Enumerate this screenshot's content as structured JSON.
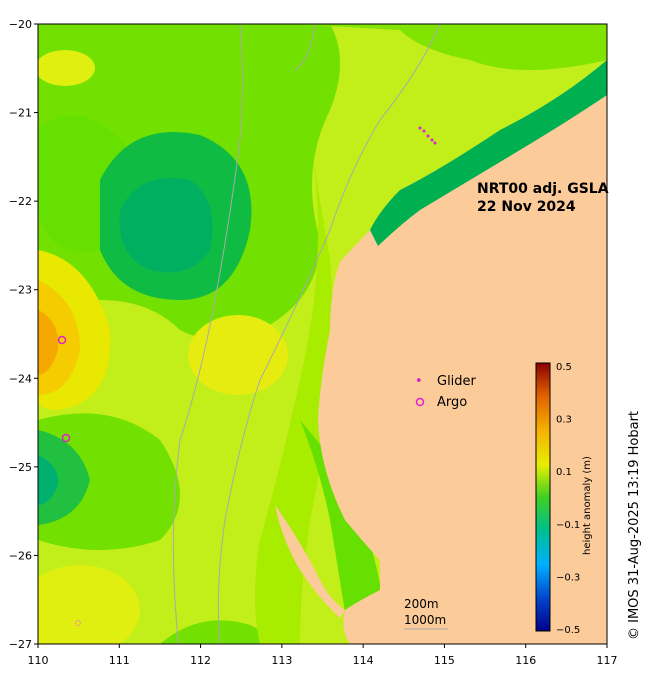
{
  "title": {
    "line1": "NRT00 adj. GSLA",
    "line2": "22 Nov 2024"
  },
  "credit": "© IMOS 31-Aug-2025 13:19 Hobart",
  "legend": {
    "glider_label": "Glider",
    "argo_label": "Argo",
    "glider_symbol": "•",
    "argo_symbol": "o",
    "glider_color": "#e020d0",
    "argo_color": "#e020d0"
  },
  "colorbar": {
    "title": "height anomaly (m)",
    "ticks": [
      "0.5",
      "0.3",
      "0.1",
      "−0.1",
      "−0.3",
      "−0.5"
    ],
    "range": [
      -0.5,
      0.5
    ]
  },
  "scale": {
    "depth1": "200m",
    "depth2": "1000m"
  },
  "axes": {
    "x_ticks": [
      "110",
      "111",
      "112",
      "113",
      "114",
      "115",
      "116",
      "117"
    ],
    "y_ticks": [
      "−20",
      "−21",
      "−22",
      "−23",
      "−24",
      "−25",
      "−26",
      "−27"
    ],
    "lon_range": [
      110,
      117
    ],
    "lat_range": [
      -27,
      -20
    ]
  },
  "colors": {
    "land": "#fccb9a",
    "ocean_low": "#00b35a",
    "ocean_mid": "#66e000",
    "ocean_high": "#f0e000"
  }
}
